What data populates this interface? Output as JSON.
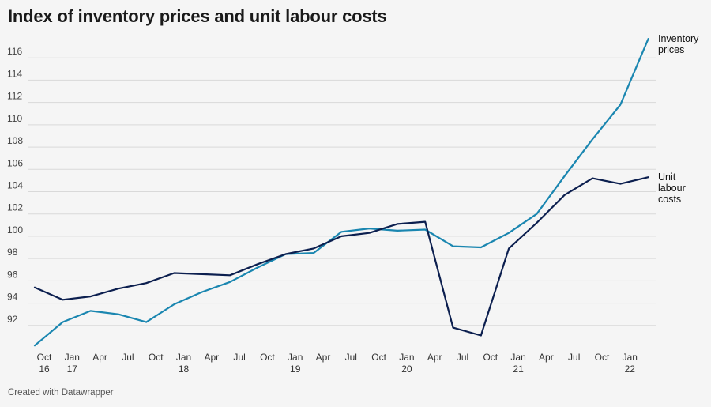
{
  "title": "Index of inventory prices and unit labour costs",
  "footer": "Created with Datawrapper",
  "chart_data": {
    "type": "line",
    "title": "Index of inventory prices and unit labour costs",
    "xlabel": "",
    "ylabel": "",
    "ylim": [
      90,
      118
    ],
    "yticks": [
      92,
      94,
      96,
      98,
      100,
      102,
      104,
      106,
      108,
      110,
      112,
      114,
      116
    ],
    "grid": true,
    "x": [
      "Sep 16",
      "Dec 16",
      "Mar 17",
      "Jun 17",
      "Sep 17",
      "Dec 17",
      "Mar 18",
      "Jun 18",
      "Sep 18",
      "Dec 18",
      "Mar 19",
      "Jun 19",
      "Sep 19",
      "Dec 19",
      "Mar 20",
      "Jun 20",
      "Sep 20",
      "Dec 20",
      "Mar 21",
      "Jun 21",
      "Sep 21",
      "Dec 21",
      "Mar 22"
    ],
    "xticks": [
      {
        "line1": "Oct",
        "line2": "16"
      },
      {
        "line1": "Jan",
        "line2": "17"
      },
      {
        "line1": "Apr",
        "line2": ""
      },
      {
        "line1": "Jul",
        "line2": ""
      },
      {
        "line1": "Oct",
        "line2": ""
      },
      {
        "line1": "Jan",
        "line2": "18"
      },
      {
        "line1": "Apr",
        "line2": ""
      },
      {
        "line1": "Jul",
        "line2": ""
      },
      {
        "line1": "Oct",
        "line2": ""
      },
      {
        "line1": "Jan",
        "line2": "19"
      },
      {
        "line1": "Apr",
        "line2": ""
      },
      {
        "line1": "Jul",
        "line2": ""
      },
      {
        "line1": "Oct",
        "line2": ""
      },
      {
        "line1": "Jan",
        "line2": "20"
      },
      {
        "line1": "Apr",
        "line2": ""
      },
      {
        "line1": "Jul",
        "line2": ""
      },
      {
        "line1": "Oct",
        "line2": ""
      },
      {
        "line1": "Jan",
        "line2": "21"
      },
      {
        "line1": "Apr",
        "line2": ""
      },
      {
        "line1": "Jul",
        "line2": ""
      },
      {
        "line1": "Oct",
        "line2": ""
      },
      {
        "line1": "Jan",
        "line2": "22"
      }
    ],
    "series": [
      {
        "name": "Inventory prices",
        "label_lines": [
          "Inventory",
          "prices"
        ],
        "color": "#1a86b0",
        "values": [
          90.2,
          92.3,
          93.3,
          93.0,
          92.3,
          93.9,
          95.0,
          95.9,
          97.2,
          98.4,
          98.5,
          100.4,
          100.7,
          100.5,
          100.6,
          99.1,
          99.0,
          100.3,
          102.0,
          105.4,
          108.7,
          111.8,
          117.7
        ]
      },
      {
        "name": "Unit labour costs",
        "label_lines": [
          "Unit",
          "labour",
          "costs"
        ],
        "color": "#0c1f4f",
        "values": [
          95.4,
          94.3,
          94.6,
          95.3,
          95.8,
          96.7,
          96.6,
          96.5,
          97.5,
          98.4,
          98.9,
          100.0,
          100.3,
          101.1,
          101.3,
          91.8,
          91.1,
          98.9,
          101.2,
          103.7,
          105.2,
          104.7,
          105.3
        ]
      }
    ]
  }
}
